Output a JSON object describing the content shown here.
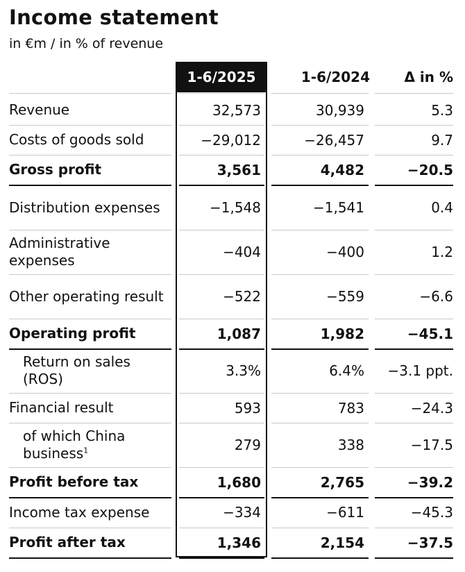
{
  "title": "Income statement",
  "subtitle": "in €m / in % of revenue",
  "columns": {
    "current": "1-6/2025",
    "previous": "1-6/2024",
    "delta": "Δ in %"
  },
  "rows": [
    {
      "label": "Revenue",
      "cur": "32,573",
      "prev": "30,939",
      "delta": "5.3",
      "bold": false,
      "indent": false
    },
    {
      "label": "Costs of goods sold",
      "cur": "−29,012",
      "prev": "−26,457",
      "delta": "9.7",
      "bold": false,
      "indent": false
    },
    {
      "label": "Gross profit",
      "cur": "3,561",
      "prev": "4,482",
      "delta": "−20.5",
      "bold": true,
      "indent": false
    },
    {
      "label": "Distribution expenses",
      "cur": "−1,548",
      "prev": "−1,541",
      "delta": "0.4",
      "bold": false,
      "indent": false
    },
    {
      "label": "Administrative expenses",
      "cur": "−404",
      "prev": "−400",
      "delta": "1.2",
      "bold": false,
      "indent": false
    },
    {
      "label": "Other operating result",
      "cur": "−522",
      "prev": "−559",
      "delta": "−6.6",
      "bold": false,
      "indent": false
    },
    {
      "label": "Operating profit",
      "cur": "1,087",
      "prev": "1,982",
      "delta": "−45.1",
      "bold": true,
      "indent": false
    },
    {
      "label": "Return on sales (ROS)",
      "cur": "3.3%",
      "prev": "6.4%",
      "delta": "−3.1 ppt.",
      "bold": false,
      "indent": true
    },
    {
      "label": "Financial result",
      "cur": "593",
      "prev": "783",
      "delta": "−24.3",
      "bold": false,
      "indent": false
    },
    {
      "label": "of which China business",
      "footnote": "1",
      "cur": "279",
      "prev": "338",
      "delta": "−17.5",
      "bold": false,
      "indent": true
    },
    {
      "label": "Profit before tax",
      "cur": "1,680",
      "prev": "2,765",
      "delta": "−39.2",
      "bold": true,
      "indent": false
    },
    {
      "label": "Income tax expense",
      "cur": "−334",
      "prev": "−611",
      "delta": "−45.3",
      "bold": false,
      "indent": false
    },
    {
      "label": "Profit after tax",
      "cur": "1,346",
      "prev": "2,154",
      "delta": "−37.5",
      "bold": true,
      "indent": false
    }
  ],
  "colors": {
    "text": "#111111",
    "header_highlight_bg": "#111111",
    "header_highlight_text": "#ffffff",
    "rule": "#c9c9c9"
  }
}
